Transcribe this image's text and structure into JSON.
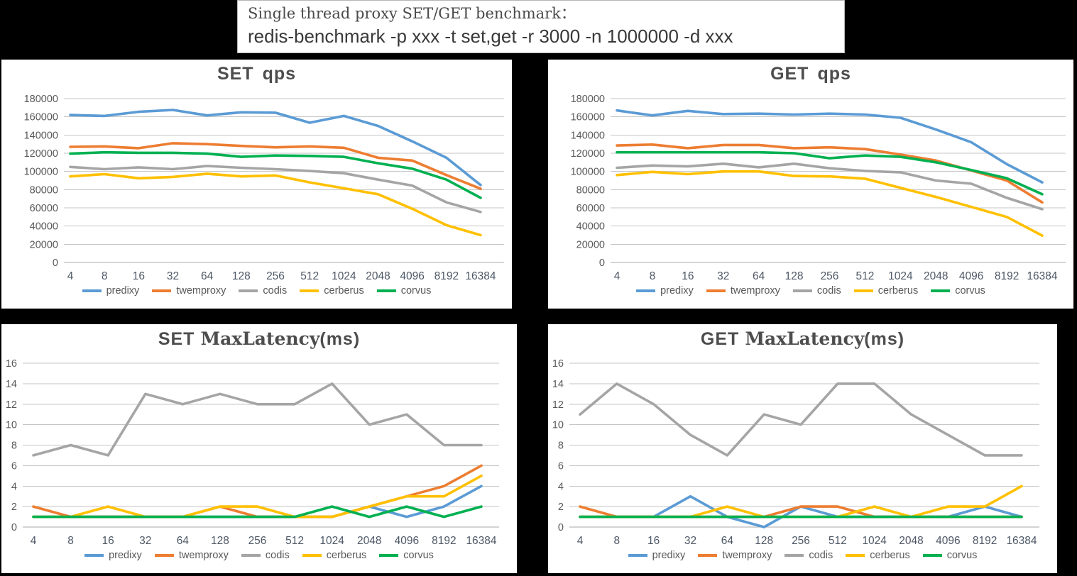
{
  "header": {
    "line1": "Single thread proxy SET/GET benchmark：",
    "line2": "redis-benchmark -p xxx -t set,get -r 3000 -n 1000000 -d xxx"
  },
  "colors": {
    "predixy": "#5B9BD5",
    "twemproxy": "#ED7D31",
    "codis": "#A5A5A5",
    "cerberus": "#FFC000",
    "corvus": "#00B050",
    "gridline": "#c6c6c6",
    "axis_label": "#595959",
    "title_text": "#4d4d4d"
  },
  "chart_data": [
    {
      "id": "set-qps",
      "type": "line",
      "title": {
        "bold_prefix": "SET",
        "main": "qps",
        "suffix": ""
      },
      "categories": [
        "4",
        "8",
        "16",
        "32",
        "64",
        "128",
        "256",
        "512",
        "1024",
        "2048",
        "4096",
        "8192",
        "16384"
      ],
      "ylim": [
        0,
        180000
      ],
      "ytick_step": 20000,
      "grid": true,
      "legend_position": "bottom",
      "series": [
        {
          "name": "predixy",
          "color": "#5B9BD5",
          "values": [
            162000,
            161000,
            165500,
            167500,
            161500,
            165000,
            164500,
            153500,
            161000,
            150000,
            133000,
            115000,
            85000
          ]
        },
        {
          "name": "twemproxy",
          "color": "#ED7D31",
          "values": [
            127000,
            127500,
            125500,
            131000,
            130000,
            128000,
            126500,
            127500,
            126000,
            115000,
            112000,
            96000,
            81000
          ]
        },
        {
          "name": "codis",
          "color": "#A5A5A5",
          "values": [
            105000,
            102500,
            104500,
            102500,
            106000,
            104000,
            102500,
            100500,
            98000,
            91000,
            84500,
            66000,
            55500
          ]
        },
        {
          "name": "cerberus",
          "color": "#FFC000",
          "values": [
            94500,
            97000,
            92500,
            94000,
            97500,
            94500,
            95500,
            88000,
            81500,
            75000,
            59000,
            41000,
            30000
          ]
        },
        {
          "name": "corvus",
          "color": "#00B050",
          "values": [
            119500,
            121000,
            120500,
            120500,
            119500,
            116000,
            117500,
            117000,
            116000,
            109000,
            103000,
            91000,
            71000
          ]
        }
      ]
    },
    {
      "id": "get-qps",
      "type": "line",
      "title": {
        "bold_prefix": "GET",
        "main": "qps",
        "suffix": ""
      },
      "categories": [
        "4",
        "8",
        "16",
        "32",
        "64",
        "128",
        "256",
        "512",
        "1024",
        "2048",
        "4096",
        "8192",
        "16384"
      ],
      "ylim": [
        0,
        180000
      ],
      "ytick_step": 20000,
      "grid": true,
      "legend_position": "bottom",
      "series": [
        {
          "name": "predixy",
          "color": "#5B9BD5",
          "values": [
            167000,
            161500,
            166500,
            163000,
            163500,
            162500,
            163500,
            162500,
            159000,
            146000,
            132000,
            108000,
            88000
          ]
        },
        {
          "name": "twemproxy",
          "color": "#ED7D31",
          "values": [
            128500,
            129500,
            125500,
            129000,
            129000,
            125500,
            126500,
            124500,
            118500,
            112000,
            101000,
            90000,
            66000
          ]
        },
        {
          "name": "codis",
          "color": "#A5A5A5",
          "values": [
            104000,
            106500,
            105500,
            108500,
            104500,
            108500,
            103500,
            100500,
            99000,
            90000,
            86500,
            71000,
            58500
          ]
        },
        {
          "name": "cerberus",
          "color": "#FFC000",
          "values": [
            96000,
            99500,
            97000,
            100000,
            100000,
            95000,
            94500,
            92000,
            82000,
            72000,
            61000,
            50000,
            29500
          ]
        },
        {
          "name": "corvus",
          "color": "#00B050",
          "values": [
            121000,
            121000,
            121000,
            121000,
            121000,
            120000,
            114500,
            117500,
            116000,
            110000,
            101500,
            92500,
            75000
          ]
        }
      ]
    },
    {
      "id": "set-maxlatency",
      "type": "line",
      "title": {
        "bold_prefix": "SET",
        "main": "MaxLatency",
        "suffix": "(ms)"
      },
      "categories": [
        "4",
        "8",
        "16",
        "32",
        "64",
        "128",
        "256",
        "512",
        "1024",
        "2048",
        "4096",
        "8192",
        "16384"
      ],
      "ylim": [
        0,
        16
      ],
      "ytick_step": 2,
      "grid": true,
      "legend_position": "bottom",
      "series": [
        {
          "name": "predixy",
          "color": "#5B9BD5",
          "values": [
            1,
            1,
            1,
            1,
            1,
            1,
            1,
            1,
            1,
            2,
            1,
            2,
            4
          ]
        },
        {
          "name": "twemproxy",
          "color": "#ED7D31",
          "values": [
            2,
            1,
            1,
            1,
            1,
            2,
            1,
            1,
            1,
            2,
            3,
            4,
            6
          ]
        },
        {
          "name": "codis",
          "color": "#A5A5A5",
          "values": [
            7,
            8,
            7,
            13,
            12,
            13,
            12,
            12,
            14,
            10,
            11,
            8,
            8
          ]
        },
        {
          "name": "cerberus",
          "color": "#FFC000",
          "values": [
            1,
            1,
            2,
            1,
            1,
            2,
            2,
            1,
            1,
            2,
            3,
            3,
            5
          ]
        },
        {
          "name": "corvus",
          "color": "#00B050",
          "values": [
            1,
            1,
            1,
            1,
            1,
            1,
            1,
            1,
            2,
            1,
            2,
            1,
            2
          ]
        }
      ]
    },
    {
      "id": "get-maxlatency",
      "type": "line",
      "title": {
        "bold_prefix": "GET",
        "main": "MaxLatency",
        "suffix": "(ms)"
      },
      "categories": [
        "4",
        "8",
        "16",
        "32",
        "64",
        "128",
        "256",
        "512",
        "1024",
        "2048",
        "4096",
        "8192",
        "16384"
      ],
      "ylim": [
        0,
        16
      ],
      "ytick_step": 2,
      "grid": true,
      "legend_position": "bottom",
      "series": [
        {
          "name": "predixy",
          "color": "#5B9BD5",
          "values": [
            1,
            1,
            1,
            3,
            1,
            0,
            2,
            1,
            1,
            1,
            1,
            2,
            1
          ]
        },
        {
          "name": "twemproxy",
          "color": "#ED7D31",
          "values": [
            2,
            1,
            1,
            1,
            1,
            1,
            2,
            2,
            1,
            1,
            1,
            1,
            1
          ]
        },
        {
          "name": "codis",
          "color": "#A5A5A5",
          "values": [
            11,
            14,
            12,
            9,
            7,
            11,
            10,
            14,
            14,
            11,
            9,
            7,
            7
          ]
        },
        {
          "name": "cerberus",
          "color": "#FFC000",
          "values": [
            1,
            1,
            1,
            1,
            2,
            1,
            1,
            1,
            2,
            1,
            2,
            2,
            4
          ]
        },
        {
          "name": "corvus",
          "color": "#00B050",
          "values": [
            1,
            1,
            1,
            1,
            1,
            1,
            1,
            1,
            1,
            1,
            1,
            1,
            1
          ]
        }
      ]
    }
  ]
}
